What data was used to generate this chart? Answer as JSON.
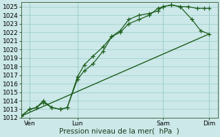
{
  "background_color": "#cce8e8",
  "grid_color": "#99cccc",
  "line_color": "#1a5c1a",
  "xlabel": "Pression niveau de la mer(  hPa  )",
  "ylim": [
    1012,
    1025.5
  ],
  "yticks": [
    1012,
    1013,
    1014,
    1015,
    1016,
    1017,
    1018,
    1019,
    1020,
    1021,
    1022,
    1023,
    1024,
    1025
  ],
  "xlim": [
    0,
    11.5
  ],
  "xtick_labels": [
    "Ven",
    "Lun",
    "Sam",
    "Dim"
  ],
  "xtick_positions": [
    0.5,
    3.3,
    8.3,
    11.0
  ],
  "line1_x": [
    0.0,
    0.5,
    0.9,
    1.3,
    1.8,
    2.3,
    2.7,
    3.3,
    3.7,
    4.2,
    4.8,
    5.3,
    5.8,
    6.3,
    6.9,
    7.5,
    8.0,
    8.3,
    8.8,
    9.3,
    9.8,
    10.3,
    10.7,
    11.0
  ],
  "line1_y": [
    1012.2,
    1013.0,
    1013.2,
    1014.0,
    1013.2,
    1013.0,
    1013.2,
    1016.5,
    1017.5,
    1018.3,
    1019.8,
    1021.5,
    1022.0,
    1023.0,
    1023.5,
    1024.0,
    1024.8,
    1025.0,
    1025.2,
    1025.0,
    1025.0,
    1024.8,
    1024.8,
    1024.8
  ],
  "line2_x": [
    0.0,
    0.5,
    0.9,
    1.3,
    1.8,
    2.3,
    2.7,
    3.3,
    3.7,
    4.2,
    4.8,
    5.3,
    5.8,
    6.3,
    6.9,
    7.5,
    8.0,
    8.3,
    8.8,
    9.3,
    10.0,
    10.5,
    11.0
  ],
  "line2_y": [
    1012.2,
    1013.0,
    1013.2,
    1013.8,
    1013.2,
    1013.0,
    1013.2,
    1016.8,
    1018.2,
    1019.2,
    1020.3,
    1021.5,
    1022.2,
    1023.5,
    1024.0,
    1024.2,
    1024.5,
    1025.0,
    1025.2,
    1025.0,
    1023.5,
    1022.2,
    1021.8
  ],
  "line3_x": [
    0.0,
    11.0
  ],
  "line3_y": [
    1012.2,
    1021.8
  ],
  "tick_fontsize": 6.5,
  "label_fontsize": 7.5
}
